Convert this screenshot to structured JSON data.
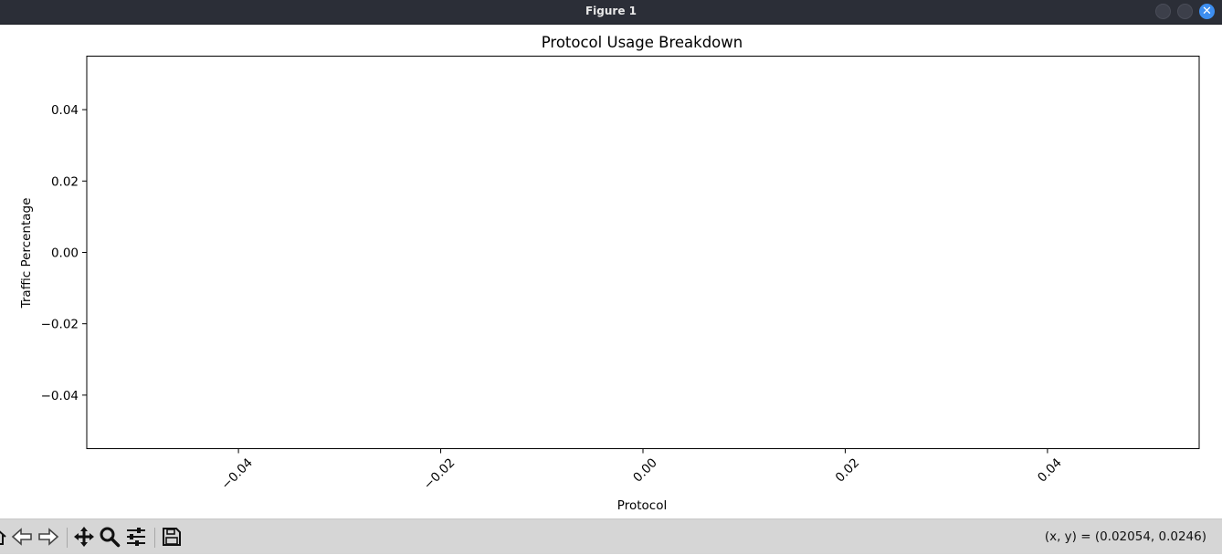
{
  "window": {
    "title": "Figure 1",
    "buttons": [
      "minimize",
      "maximize",
      "close"
    ]
  },
  "toolbar": {
    "tools": [
      {
        "name": "home-icon",
        "label": "Home"
      },
      {
        "name": "back-arrow-icon",
        "label": "Back"
      },
      {
        "name": "forward-arrow-icon",
        "label": "Forward"
      },
      {
        "name": "pan-move-icon",
        "label": "Pan"
      },
      {
        "name": "zoom-magnifier-icon",
        "label": "Zoom"
      },
      {
        "name": "configure-sliders-icon",
        "label": "Configure subplots"
      },
      {
        "name": "save-floppy-icon",
        "label": "Save"
      }
    ],
    "coords_readout": "(x, y) = (0.02054, 0.0246)"
  },
  "chart_data": {
    "type": "bar",
    "title": "Protocol Usage Breakdown",
    "xlabel": "Protocol",
    "ylabel": "Traffic Percentage",
    "categories": [],
    "values": [],
    "xlim": [
      -0.055,
      0.055
    ],
    "ylim": [
      -0.055,
      0.055
    ],
    "xticks": [
      -0.04,
      -0.02,
      0.0,
      0.02,
      0.04
    ],
    "xtick_labels": [
      "−0.04",
      "−0.02",
      "0.00",
      "0.02",
      "0.04"
    ],
    "yticks": [
      0.04,
      0.02,
      0.0,
      -0.02,
      -0.04
    ],
    "ytick_labels": [
      "0.04",
      "0.02",
      "0.00",
      "−0.02",
      "−0.04"
    ],
    "xtick_rotation": "45deg",
    "grid": false,
    "legend": "none"
  }
}
